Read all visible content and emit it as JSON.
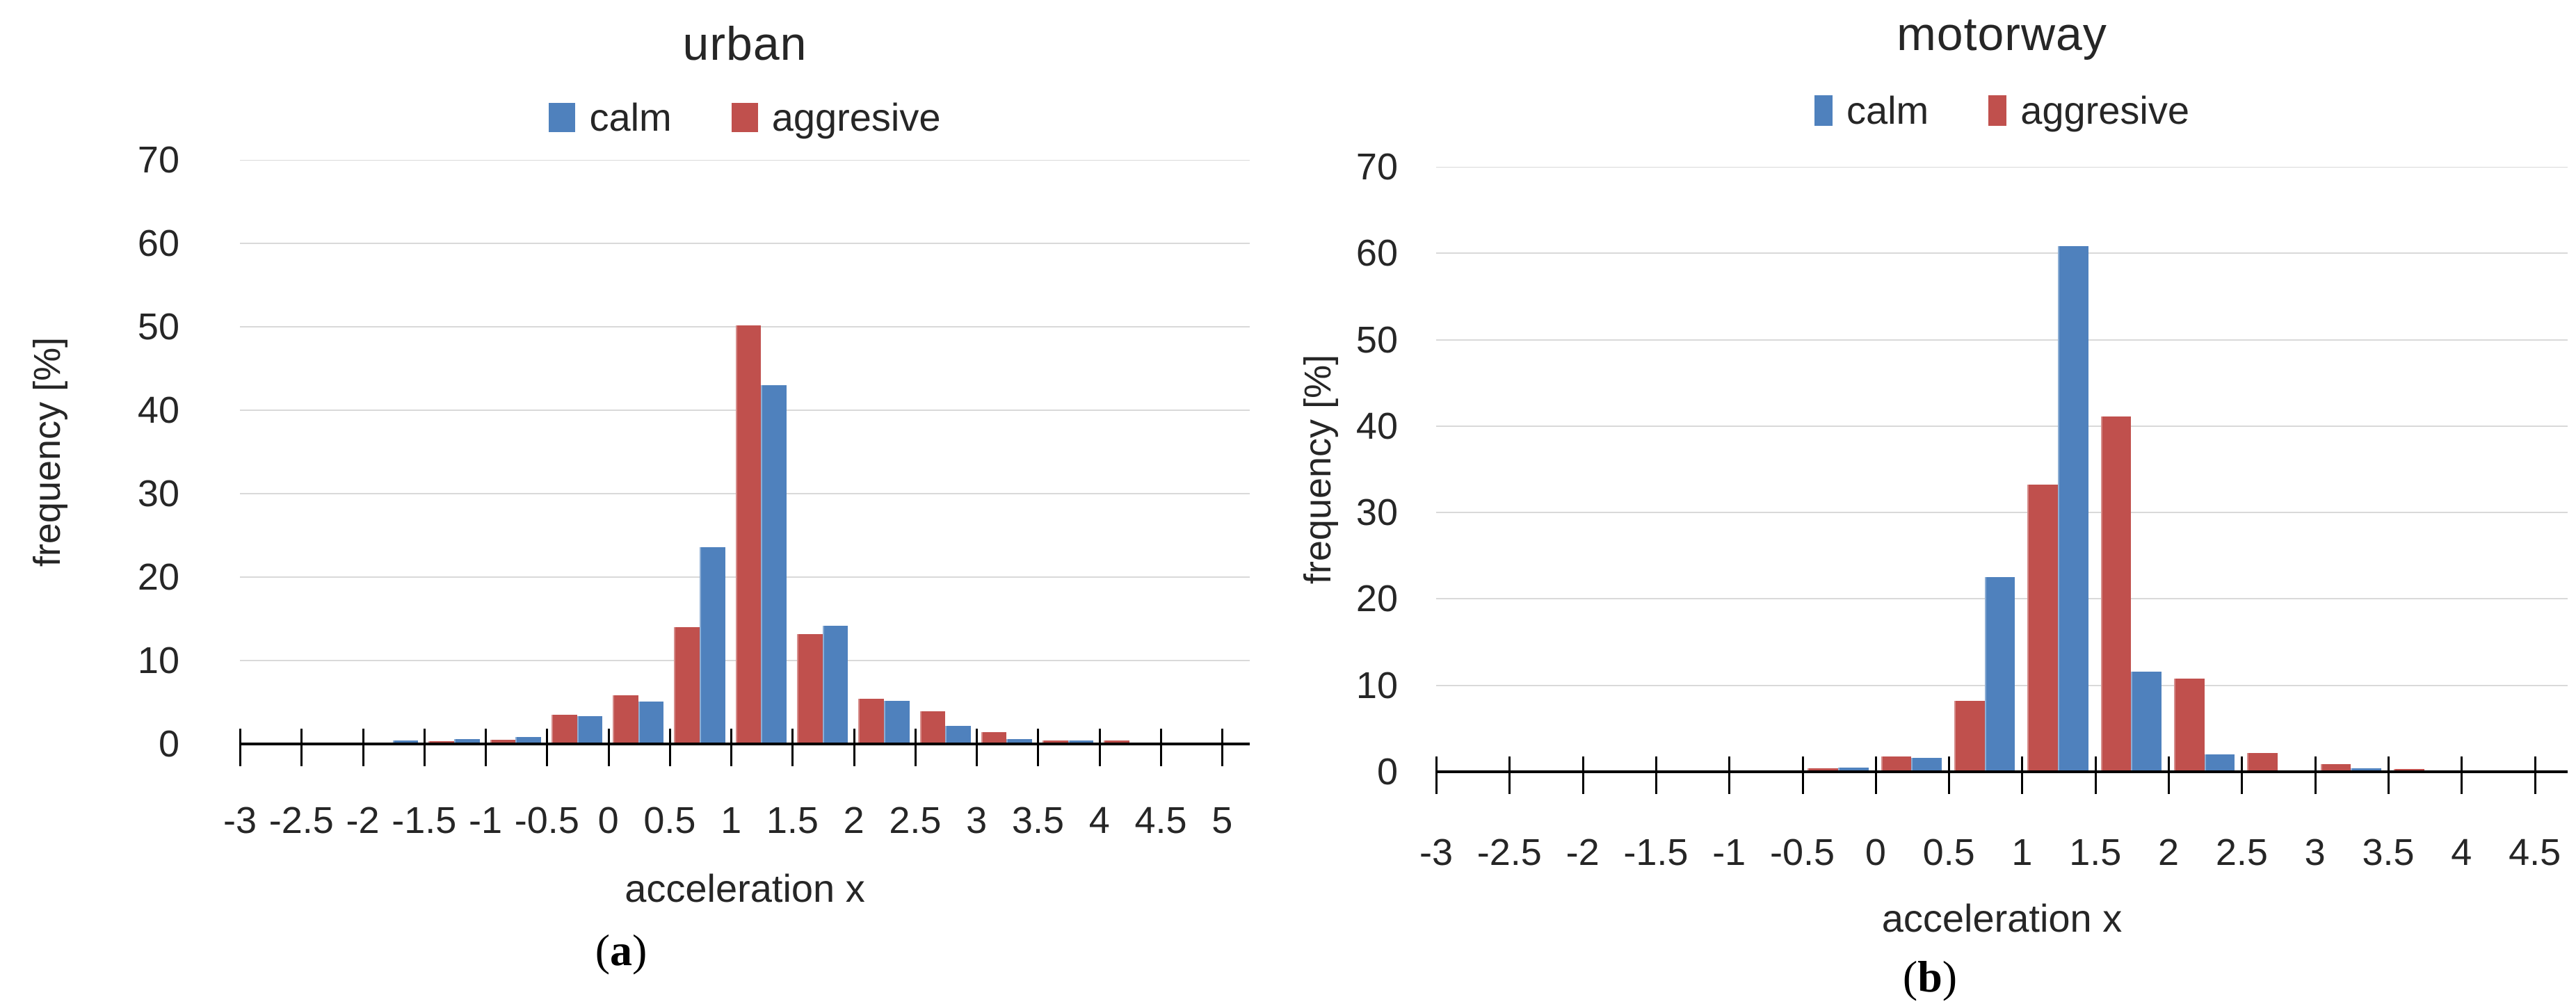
{
  "page": {
    "background": "#FFFFFF"
  },
  "colors": {
    "calm_blue": "#4F81BD",
    "aggressive_red": "#C0504D",
    "gridline_gray": "#D9D9D9",
    "axis_black": "#000000",
    "text_dark": "#262626"
  },
  "captions": {
    "a": {
      "open": "(",
      "letter": "a",
      "close": ")"
    },
    "b": {
      "open": "(",
      "letter": "b",
      "close": ")"
    }
  },
  "chart_data": [
    {
      "type": "bar",
      "panel": "a",
      "title": "urban",
      "xlabel": "acceleration x",
      "ylabel": "frequency [%]",
      "ylim": [
        0,
        70
      ],
      "y_ticks": [
        0,
        10,
        20,
        30,
        40,
        50,
        60,
        70
      ],
      "grid": "horizontal",
      "legend_position": "top",
      "bin_width": 0.5,
      "x_tick_labels": [
        "-3",
        "-2.5",
        "-2",
        "-1.5",
        "-1",
        "-0.5",
        "0",
        "0.5",
        "1",
        "1.5",
        "2",
        "2.5",
        "3",
        "3.5",
        "4",
        "4.5",
        "5"
      ],
      "x_bins_left_edges": [
        -3,
        -2.5,
        -2,
        -1.5,
        -1,
        -0.5,
        0,
        0.5,
        1,
        1.5,
        2,
        2.5,
        3,
        3.5,
        4,
        4.5,
        5
      ],
      "legend": [
        {
          "label": "calm",
          "color": "#4F81BD"
        },
        {
          "label": "aggresive",
          "color": "#C0504D"
        }
      ],
      "series": [
        {
          "name": "aggresive",
          "color": "#C0504D",
          "values": [
            0,
            0.2,
            0.2,
            0.3,
            0.5,
            3.5,
            5.8,
            14,
            50.2,
            13.2,
            5.4,
            3.9,
            1.4,
            0.4,
            0.4,
            0.2,
            0.2
          ]
        },
        {
          "name": "calm",
          "color": "#4F81BD",
          "values": [
            0,
            0,
            0.4,
            0.6,
            0.8,
            3.3,
            5.1,
            23.6,
            43,
            14.2,
            5.2,
            2.2,
            0.6,
            0.4,
            0,
            0,
            0
          ]
        }
      ]
    },
    {
      "type": "bar",
      "panel": "b",
      "title": "motorway",
      "xlabel": "acceleration x",
      "ylabel": "frequency [%]",
      "ylim": [
        0,
        70
      ],
      "y_ticks": [
        0,
        10,
        20,
        30,
        40,
        50,
        60,
        70
      ],
      "grid": "horizontal",
      "legend_position": "top",
      "bin_width": 0.5,
      "x_tick_labels": [
        "-3",
        "-2.5",
        "-2",
        "-1.5",
        "-1",
        "-0.5",
        "0",
        "0.5",
        "1",
        "1.5",
        "2",
        "2.5",
        "3",
        "3.5",
        "4",
        "4.5"
      ],
      "x_bins_left_edges": [
        -3,
        -2.5,
        -2,
        -1.5,
        -1,
        -0.5,
        0,
        0.5,
        1,
        1.5,
        2,
        2.5,
        3,
        3.5,
        4,
        4.5
      ],
      "legend": [
        {
          "label": "calm",
          "color": "#4F81BD"
        },
        {
          "label": "aggresive",
          "color": "#C0504D"
        }
      ],
      "series": [
        {
          "name": "aggresive",
          "color": "#C0504D",
          "values": [
            0,
            0,
            0,
            0,
            0,
            0.4,
            1.8,
            8.2,
            33.2,
            41.1,
            10.8,
            2.2,
            0.9,
            0.3,
            0,
            0
          ]
        },
        {
          "name": "calm",
          "color": "#4F81BD",
          "values": [
            0,
            0,
            0,
            0,
            0,
            0.5,
            1.6,
            22.5,
            60.8,
            11.6,
            2,
            0.2,
            0.4,
            0,
            0,
            0
          ]
        }
      ]
    }
  ]
}
